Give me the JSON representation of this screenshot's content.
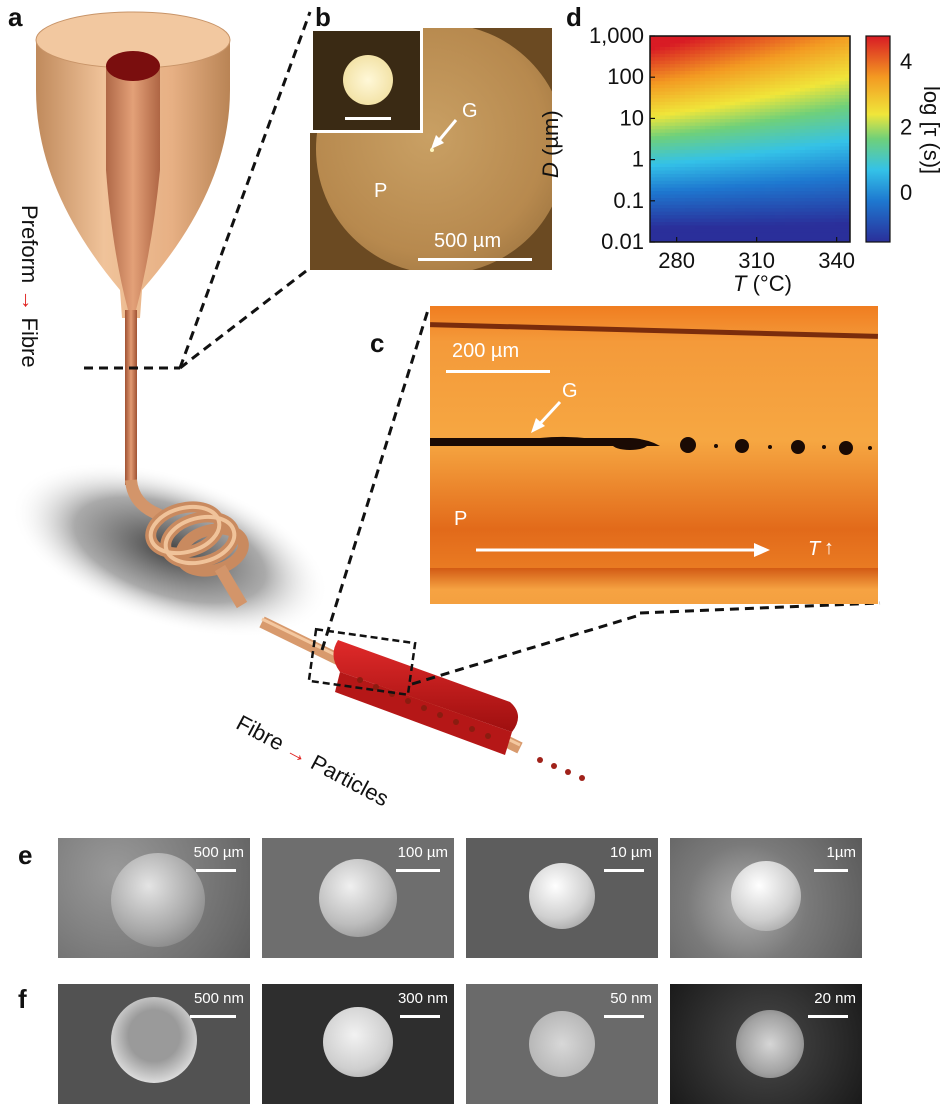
{
  "panel_letters": {
    "a": "a",
    "b": "b",
    "c": "c",
    "d": "d",
    "e": "e",
    "f": "f"
  },
  "panel_a": {
    "vertical_label_left": "Preform",
    "vertical_label_right": "Fibre",
    "arrow_glyph": "→",
    "bottom_label_left": "Fibre",
    "bottom_label_right": "Particles",
    "arrow_color": "#e0201e"
  },
  "panel_b": {
    "label_G": "G",
    "label_P": "P",
    "scale_bar": "500 µm"
  },
  "panel_c": {
    "scale_bar": "200 µm",
    "label_G": "G",
    "label_P": "P",
    "label_T": "T",
    "up_arrow": "↑"
  },
  "panel_d": {
    "ylabel_var": "D",
    "ylabel_unit": " (µm)",
    "xlabel_var": "T",
    "xlabel_unit": " (°C)",
    "colorbar_label": "log [τ (s)]",
    "colorbar_ticks": [
      "4",
      "2",
      "0"
    ],
    "y_ticks": [
      "1,000",
      "100",
      "10",
      "1",
      "0.1",
      "0.01"
    ],
    "x_ticks": [
      "280",
      "310",
      "340"
    ]
  },
  "chart_data": {
    "type": "heatmap",
    "xlabel": "T (°C)",
    "ylabel": "D (µm)",
    "xlim": [
      270,
      345
    ],
    "ylim": [
      0.01,
      1000
    ],
    "y_scale": "log",
    "x_ticks": [
      280,
      310,
      340
    ],
    "y_ticks": [
      0.01,
      0.1,
      1,
      10,
      100,
      1000
    ],
    "colorbar": {
      "label": "log [τ (s)]",
      "range": [
        -1.5,
        4.8
      ],
      "ticks": [
        0,
        2,
        4
      ]
    },
    "colors": {
      "low": "#2a2f9a",
      "mid": "#3cc7c8",
      "high": "#d81b24"
    }
  },
  "panel_e": {
    "scale_bars": [
      "500 µm",
      "100 µm",
      "10 µm",
      "1µm"
    ]
  },
  "panel_f": {
    "scale_bars": [
      "500 nm",
      "300 nm",
      "50 nm",
      "20 nm"
    ]
  }
}
